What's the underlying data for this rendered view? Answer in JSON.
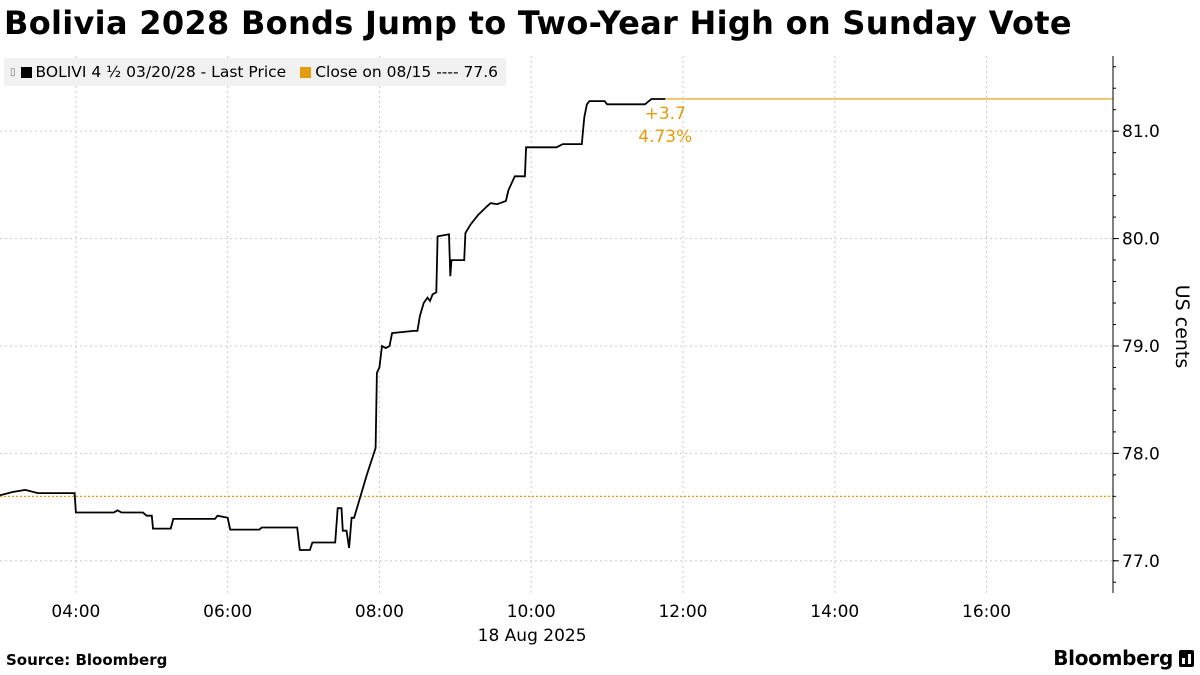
{
  "title": "Bolivia 2028 Bonds Jump to Two-Year High on Sunday Vote",
  "source": "Source: Bloomberg",
  "brand": "Bloomberg",
  "legend": {
    "series_label": "BOLIVI 4 ½ 03/20/28 - Last Price",
    "reference_label": "Close on 08/15 ---- 77.6"
  },
  "colors": {
    "series": "#000000",
    "reference": "#e59c0a",
    "grid": "#cccccc",
    "legend_bg": "#f1f1f1"
  },
  "change_annotation": {
    "abs": "+3.7",
    "pct": "4.73%"
  },
  "chart_data": {
    "type": "line",
    "title": "Bolivia 2028 Bonds Jump to Two-Year High on Sunday Vote",
    "ylabel": "US cents",
    "xlabel": "18 Aug 2025",
    "ylim": [
      76.7,
      81.7
    ],
    "xlim": [
      "03:00",
      "17:40"
    ],
    "x_ticks": [
      "04:00",
      "06:00",
      "08:00",
      "10:00",
      "12:00",
      "14:00",
      "16:00"
    ],
    "y_ticks": [
      "77.0",
      "78.0",
      "79.0",
      "80.0",
      "81.0"
    ],
    "grid": true,
    "legend_position": "top-left",
    "reference_line": {
      "label": "Close on 08/15",
      "value": 77.6
    },
    "series": [
      {
        "name": "BOLIVI 4 ½ 03/20/28 - Last Price",
        "points": [
          [
            "03:00",
            77.61
          ],
          [
            "03:10",
            77.64
          ],
          [
            "03:20",
            77.66
          ],
          [
            "03:30",
            77.63
          ],
          [
            "03:59",
            77.63
          ],
          [
            "04:00",
            77.45
          ],
          [
            "04:30",
            77.45
          ],
          [
            "04:33",
            77.47
          ],
          [
            "04:36",
            77.45
          ],
          [
            "04:53",
            77.45
          ],
          [
            "04:56",
            77.42
          ],
          [
            "05:00",
            77.42
          ],
          [
            "05:01",
            77.3
          ],
          [
            "05:15",
            77.3
          ],
          [
            "05:17",
            77.39
          ],
          [
            "05:50",
            77.39
          ],
          [
            "05:52",
            77.42
          ],
          [
            "06:00",
            77.4
          ],
          [
            "06:02",
            77.29
          ],
          [
            "06:25",
            77.29
          ],
          [
            "06:27",
            77.31
          ],
          [
            "06:55",
            77.31
          ],
          [
            "06:57",
            77.1
          ],
          [
            "07:05",
            77.1
          ],
          [
            "07:07",
            77.17
          ],
          [
            "07:25",
            77.17
          ],
          [
            "07:27",
            77.49
          ],
          [
            "07:30",
            77.49
          ],
          [
            "07:31",
            77.28
          ],
          [
            "07:34",
            77.28
          ],
          [
            "07:36",
            77.12
          ],
          [
            "07:38",
            77.4
          ],
          [
            "07:40",
            77.4
          ],
          [
            "07:50",
            77.8
          ],
          [
            "07:57",
            78.05
          ],
          [
            "07:58",
            78.75
          ],
          [
            "08:00",
            78.8
          ],
          [
            "08:02",
            79.0
          ],
          [
            "08:05",
            78.98
          ],
          [
            "08:08",
            79.0
          ],
          [
            "08:10",
            79.12
          ],
          [
            "08:27",
            79.14
          ],
          [
            "08:30",
            79.14
          ],
          [
            "08:32",
            79.28
          ],
          [
            "08:35",
            79.4
          ],
          [
            "08:38",
            79.45
          ],
          [
            "08:40",
            79.42
          ],
          [
            "08:42",
            79.48
          ],
          [
            "08:45",
            79.5
          ],
          [
            "08:46",
            80.02
          ],
          [
            "08:55",
            80.04
          ],
          [
            "08:56",
            79.65
          ],
          [
            "08:57",
            79.8
          ],
          [
            "09:07",
            79.8
          ],
          [
            "09:08",
            80.05
          ],
          [
            "09:12",
            80.13
          ],
          [
            "09:18",
            80.22
          ],
          [
            "09:25",
            80.3
          ],
          [
            "09:28",
            80.33
          ],
          [
            "09:33",
            80.32
          ],
          [
            "09:40",
            80.35
          ],
          [
            "09:42",
            80.45
          ],
          [
            "09:47",
            80.58
          ],
          [
            "09:55",
            80.58
          ],
          [
            "09:56",
            80.85
          ],
          [
            "10:20",
            80.85
          ],
          [
            "10:25",
            80.88
          ],
          [
            "10:40",
            80.88
          ],
          [
            "10:42",
            81.13
          ],
          [
            "10:44",
            81.25
          ],
          [
            "10:46",
            81.28
          ],
          [
            "10:58",
            81.28
          ],
          [
            "11:00",
            81.25
          ],
          [
            "11:30",
            81.25
          ],
          [
            "11:32",
            81.27
          ],
          [
            "11:35",
            81.3
          ],
          [
            "11:46",
            81.3
          ]
        ]
      }
    ]
  }
}
